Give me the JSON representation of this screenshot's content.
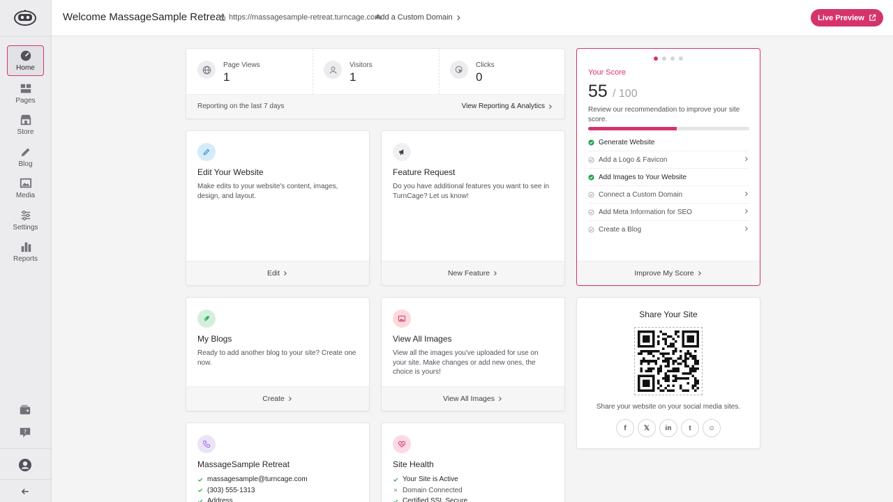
{
  "app": {
    "logo_icon": "robot-logo-icon"
  },
  "sidebar": {
    "items": [
      {
        "label": "Home",
        "icon": "gauge-icon"
      },
      {
        "label": "Pages",
        "icon": "pages-icon"
      },
      {
        "label": "Store",
        "icon": "store-icon"
      },
      {
        "label": "Blog",
        "icon": "pencil-icon"
      },
      {
        "label": "Media",
        "icon": "image-icon"
      },
      {
        "label": "Settings",
        "icon": "sliders-icon"
      },
      {
        "label": "Reports",
        "icon": "bar-chart-icon"
      }
    ]
  },
  "header": {
    "title": "Welcome MassageSample Retreat",
    "site_url": "https://massagesample-retreat.turncage.com",
    "custom_domain_label": "Add a Custom Domain",
    "live_preview_label": "Live Preview"
  },
  "stats": {
    "items": [
      {
        "label": "Page Views",
        "value": "1",
        "icon": "globe-icon"
      },
      {
        "label": "Visitors",
        "value": "1",
        "icon": "user-icon"
      },
      {
        "label": "Clicks",
        "value": "0",
        "icon": "cursor-click-icon"
      }
    ],
    "footer_note": "Reporting on the last 7 days",
    "footer_link": "View Reporting & Analytics"
  },
  "cards": {
    "edit_website": {
      "title": "Edit Your Website",
      "description": "Make edits to your website's content, images, design, and layout.",
      "action": "Edit"
    },
    "feature_request": {
      "title": "Feature Request",
      "description": "Do you have additional features you want to see in TurnCage? Let us know!",
      "action": "New Feature"
    },
    "my_blogs": {
      "title": "My Blogs",
      "description": "Ready to add another blog to your site? Create one now.",
      "action": "Create"
    },
    "view_images": {
      "title": "View All Images",
      "description": "View all the images you've uploaded for use on your site. Make changes or add new ones, the choice is yours!",
      "action": "View All Images"
    },
    "business": {
      "title": "MassageSample Retreat",
      "items": [
        "massagesample@turncage.com",
        "(303) 555-1313",
        "Address"
      ]
    },
    "site_health": {
      "title": "Site Health",
      "items": [
        {
          "label": "Your Site is Active",
          "ok": true
        },
        {
          "label": "Domain Connected",
          "ok": false
        },
        {
          "label": "Certified SSL Secure",
          "ok": true
        }
      ]
    }
  },
  "score": {
    "label": "Your Score",
    "value": "55",
    "max": "/ 100",
    "progress_percent": 55,
    "description": "Review our recommendation to improve your site score.",
    "checklist": [
      {
        "label": "Generate Website",
        "done": true
      },
      {
        "label": "Add a Logo & Favicon",
        "done": false
      },
      {
        "label": "Add Images to Your Website",
        "done": true
      },
      {
        "label": "Connect a Custom Domain",
        "done": false
      },
      {
        "label": "Add Meta Information for SEO",
        "done": false
      },
      {
        "label": "Create a Blog",
        "done": false
      }
    ],
    "action": "Improve My Score",
    "carousel_active_index": 0,
    "carousel_count": 4
  },
  "share": {
    "title": "Share Your Site",
    "description": "Share your website on your social media sites.",
    "socials": [
      {
        "glyph": "f",
        "icon": "facebook-icon"
      },
      {
        "glyph": "𝕏",
        "icon": "x-icon"
      },
      {
        "glyph": "in",
        "icon": "linkedin-icon"
      },
      {
        "glyph": "t",
        "icon": "tumblr-icon"
      },
      {
        "glyph": "☺",
        "icon": "reddit-icon"
      }
    ]
  },
  "colors": {
    "accent": "#d6336c",
    "success": "#22a04b"
  }
}
